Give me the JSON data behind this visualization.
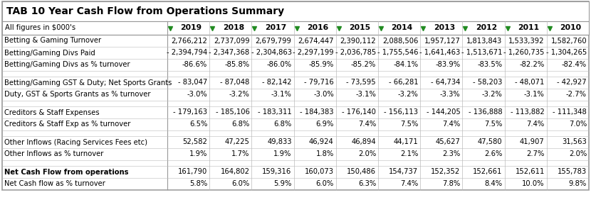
{
  "title": "TAB 10 Year Cash Flow from Operations Summary",
  "subtitle": "All figures in $000's",
  "years": [
    "2019",
    "2018",
    "2017",
    "2016",
    "2015",
    "2014",
    "2013",
    "2012",
    "2011",
    "2010"
  ],
  "rows": [
    {
      "label": "Betting & Gaming Turnover",
      "values": [
        "2,766,212",
        "2,737,099",
        "2,679,799",
        "2,674,447",
        "2,390,112",
        "2,088,506",
        "1,957,127",
        "1,813,843",
        "1,533,392",
        "1,582,760"
      ],
      "bold": false,
      "empty": false
    },
    {
      "label": "Betting/Gaming Divs Paid",
      "values": [
        "- 2,394,794",
        "- 2,347,368",
        "- 2,304,863",
        "- 2,297,199",
        "- 2,036,785",
        "- 1,755,546",
        "- 1,641,463",
        "- 1,513,671",
        "- 1,260,735",
        "- 1,304,265"
      ],
      "bold": false,
      "empty": false
    },
    {
      "label": "Betting/Gaming Divs as % turnover",
      "values": [
        "-86.6%",
        "-85.8%",
        "-86.0%",
        "-85.9%",
        "-85.2%",
        "-84.1%",
        "-83.9%",
        "-83.5%",
        "-82.2%",
        "-82.4%"
      ],
      "bold": false,
      "empty": false
    },
    {
      "label": "",
      "values": [
        "",
        "",
        "",
        "",
        "",
        "",
        "",
        "",
        "",
        ""
      ],
      "bold": false,
      "empty": true
    },
    {
      "label": "Betting/Gaming GST & Duty; Net Sports Grants",
      "values": [
        "- 83,047",
        "- 87,048",
        "- 82,142",
        "- 79,716",
        "- 73,595",
        "- 66,281",
        "- 64,734",
        "- 58,203",
        "- 48,071",
        "- 42,927"
      ],
      "bold": false,
      "empty": false
    },
    {
      "label": "Duty, GST & Sports Grants as % turnover",
      "values": [
        "-3.0%",
        "-3.2%",
        "-3.1%",
        "-3.0%",
        "-3.1%",
        "-3.2%",
        "-3.3%",
        "-3.2%",
        "-3.1%",
        "-2.7%"
      ],
      "bold": false,
      "empty": false
    },
    {
      "label": "",
      "values": [
        "",
        "",
        "",
        "",
        "",
        "",
        "",
        "",
        "",
        ""
      ],
      "bold": false,
      "empty": true
    },
    {
      "label": "Creditors & Staff Expenses",
      "values": [
        "- 179,163",
        "- 185,106",
        "- 183,311",
        "- 184,383",
        "- 176,140",
        "- 156,113",
        "- 144,205",
        "- 136,888",
        "- 113,882",
        "- 111,348"
      ],
      "bold": false,
      "empty": false
    },
    {
      "label": "Creditors & Staff Exp as % turnover",
      "values": [
        "6.5%",
        "6.8%",
        "6.8%",
        "6.9%",
        "7.4%",
        "7.5%",
        "7.4%",
        "7.5%",
        "7.4%",
        "7.0%"
      ],
      "bold": false,
      "empty": false
    },
    {
      "label": "",
      "values": [
        "",
        "",
        "",
        "",
        "",
        "",
        "",
        "",
        "",
        ""
      ],
      "bold": false,
      "empty": true
    },
    {
      "label": "Other Inflows (Racing Services Fees etc)",
      "values": [
        "52,582",
        "47,225",
        "49,833",
        "46,924",
        "46,894",
        "44,171",
        "45,627",
        "47,580",
        "41,907",
        "31,563"
      ],
      "bold": false,
      "empty": false
    },
    {
      "label": "Other Inflows as % turnover",
      "values": [
        "1.9%",
        "1.7%",
        "1.9%",
        "1.8%",
        "2.0%",
        "2.1%",
        "2.3%",
        "2.6%",
        "2.7%",
        "2.0%"
      ],
      "bold": false,
      "empty": false
    },
    {
      "label": "",
      "values": [
        "",
        "",
        "",
        "",
        "",
        "",
        "",
        "",
        "",
        ""
      ],
      "bold": false,
      "empty": true
    },
    {
      "label": "Net Cash Flow from operations",
      "values": [
        "161,790",
        "164,802",
        "159,316",
        "160,073",
        "150,486",
        "154,737",
        "152,352",
        "152,661",
        "152,611",
        "155,783"
      ],
      "bold": true,
      "empty": false
    },
    {
      "label": "Net Cash flow as % turnover",
      "values": [
        "5.8%",
        "6.0%",
        "5.9%",
        "6.0%",
        "6.3%",
        "7.4%",
        "7.8%",
        "8.4%",
        "10.0%",
        "9.8%"
      ],
      "bold": false,
      "empty": false
    }
  ],
  "border_color": "#999999",
  "grid_color": "#bbbbbb",
  "green_arrow": "#228B22",
  "text_color": "#000000",
  "font_size": 7.2,
  "header_font_size": 7.8,
  "title_font_size": 10.0
}
